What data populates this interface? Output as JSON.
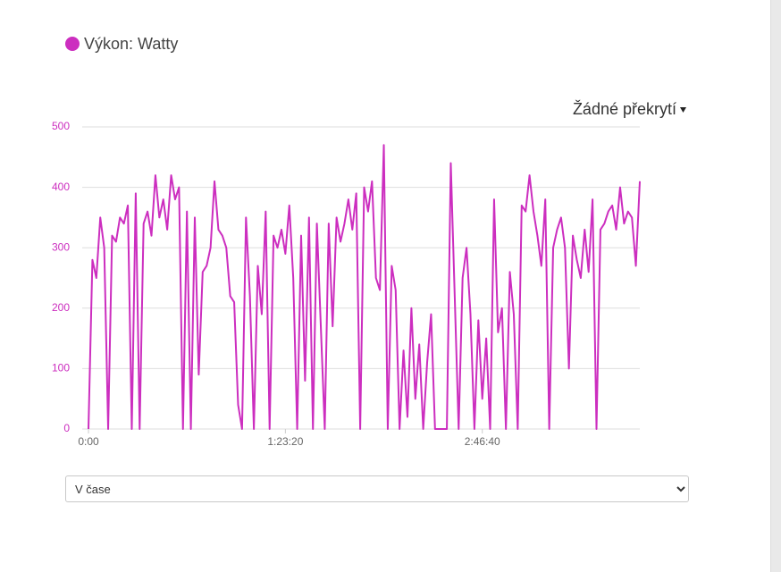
{
  "legend": {
    "label": "Výkon: Watty"
  },
  "overlay": {
    "label": "Žádné překrytí"
  },
  "mode_select": {
    "selected": "V čase"
  },
  "chart_data": {
    "type": "line",
    "x": [
      0,
      100,
      200,
      300,
      400,
      500,
      600,
      700,
      800,
      900,
      1000,
      1100,
      1200,
      1300,
      1400,
      1500,
      1600,
      1700,
      1800,
      1900,
      2000,
      2100,
      2200,
      2300,
      2400,
      2500,
      2600,
      2700,
      2800,
      2900,
      3000,
      3100,
      3200,
      3300,
      3400,
      3500,
      3600,
      3700,
      3800,
      3900,
      4000,
      4100,
      4200,
      4300,
      4400,
      4500,
      4600,
      4700,
      4800,
      4900,
      5000,
      5100,
      5200,
      5300,
      5400,
      5500,
      5600,
      5700,
      5800,
      5900,
      6000,
      6100,
      6200,
      6300,
      6400,
      6500,
      6600,
      6700,
      6800,
      6900,
      7000,
      7100,
      7200,
      7300,
      7400,
      7500,
      7600,
      7700,
      7800,
      7900,
      8000,
      8100,
      8200,
      8300,
      8400,
      8500,
      8600,
      8700,
      8800,
      8900,
      9000,
      9100,
      9200,
      9300,
      9400,
      9500,
      9600,
      9700,
      9800,
      9900,
      10000,
      10100,
      10200,
      10300,
      10400,
      10500,
      10600,
      10700,
      10800,
      10900,
      11000,
      11100,
      11200,
      11300,
      11400,
      11500,
      11600,
      11700,
      11800,
      11900,
      12000,
      12100,
      12200,
      12300,
      12400,
      12500,
      12600,
      12700,
      12800,
      12900,
      13000,
      13100,
      13200,
      13300,
      13400,
      13500,
      13600,
      13700,
      13800,
      13900,
      14000
    ],
    "series": [
      {
        "name": "Výkon: Watty",
        "color": "#cc2ebf",
        "values": [
          0,
          280,
          250,
          350,
          300,
          0,
          320,
          310,
          350,
          340,
          370,
          0,
          390,
          0,
          340,
          360,
          320,
          420,
          350,
          380,
          330,
          420,
          380,
          400,
          0,
          360,
          0,
          350,
          90,
          260,
          270,
          300,
          410,
          330,
          320,
          300,
          220,
          210,
          40,
          0,
          350,
          220,
          0,
          270,
          190,
          360,
          0,
          320,
          300,
          330,
          290,
          370,
          250,
          0,
          320,
          80,
          350,
          0,
          340,
          170,
          0,
          340,
          170,
          350,
          310,
          340,
          380,
          330,
          390,
          0,
          400,
          360,
          410,
          250,
          230,
          470,
          0,
          270,
          230,
          0,
          130,
          20,
          200,
          50,
          140,
          0,
          110,
          190,
          0,
          0,
          0,
          0,
          440,
          220,
          0,
          250,
          300,
          190,
          0,
          180,
          50,
          150,
          0,
          380,
          160,
          200,
          0,
          260,
          190,
          0,
          370,
          360,
          420,
          360,
          320,
          270,
          380,
          0,
          300,
          330,
          350,
          300,
          100,
          320,
          280,
          250,
          330,
          260,
          380,
          0,
          330,
          340,
          360,
          370,
          330,
          400,
          340,
          360,
          350,
          270,
          410
        ]
      }
    ],
    "xlim": [
      0,
      14000
    ],
    "xticks": [
      {
        "value": 0,
        "label": "0:00"
      },
      {
        "value": 5000,
        "label": "1:23:20"
      },
      {
        "value": 10000,
        "label": "2:46:40"
      }
    ],
    "ylim": [
      0,
      500
    ],
    "yticks": [
      0,
      100,
      200,
      300,
      400,
      500
    ],
    "grid": true
  }
}
